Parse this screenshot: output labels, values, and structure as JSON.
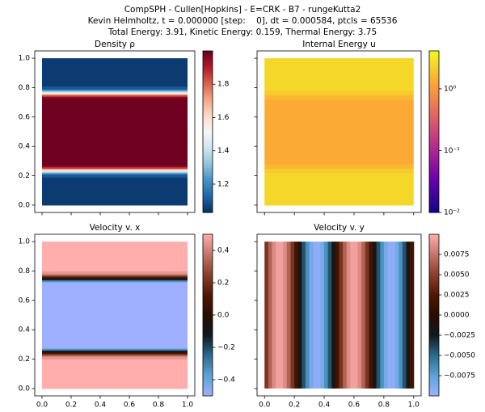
{
  "suptitle": [
    "CompSPH - Cullen[Hopkins] - E=CRK - B7 - rungeKutta2",
    "Kevin Helmholtz, t = 0.000000 [step:    0], dt = 0.000584, ptcls = 65536",
    "Total Energy: 3.91, Kinetic Energy: 0.159, Thermal Energy: 3.75"
  ],
  "chart_data": [
    {
      "type": "heatmap",
      "title": "Density ρ",
      "xlim": [
        -0.05,
        1.05
      ],
      "ylim": [
        -0.05,
        1.05
      ],
      "xticks": [
        0,
        0.2,
        0.4,
        0.6,
        0.8,
        1
      ],
      "yticks": [
        {
          "value": 0,
          "label": "0.0"
        },
        {
          "value": 0.2,
          "label": "0.2"
        },
        {
          "value": 0.4,
          "label": "0.4"
        },
        {
          "value": 0.6,
          "label": "0.6"
        },
        {
          "value": 0.8,
          "label": "0.8"
        },
        {
          "value": 1,
          "label": "1.0"
        }
      ],
      "y_edges": [
        0,
        0.19,
        0.21,
        0.22,
        0.23,
        0.24,
        0.25,
        0.26,
        0.27,
        0.73,
        0.74,
        0.75,
        0.76,
        0.77,
        0.78,
        0.79,
        0.81,
        1
      ],
      "values": [
        1.05,
        1.1,
        1.2,
        1.35,
        1.5,
        1.7,
        1.85,
        1.95,
        1.99,
        1.95,
        1.85,
        1.7,
        1.5,
        1.35,
        1.2,
        1.1,
        1.05
      ],
      "clim": [
        1.03,
        2.0
      ],
      "log": false,
      "cticks": [
        1.2,
        1.4,
        1.6,
        1.8
      ],
      "cmap": [
        "#053061",
        "#2166ac",
        "#4393c3",
        "#92c5de",
        "#d1e5f0",
        "#f7f7f7",
        "#fddbc7",
        "#f4a582",
        "#d6604d",
        "#b2182b",
        "#67001f"
      ]
    },
    {
      "type": "heatmap",
      "title": "Internal Energy u",
      "xlim": [
        -0.05,
        1.05
      ],
      "ylim": [
        -0.05,
        1.05
      ],
      "xticks": [
        0,
        0.2,
        0.4,
        0.6,
        0.8,
        1
      ],
      "yticks": [
        0,
        0.2,
        0.4,
        0.6,
        0.8,
        1
      ],
      "y_edges": [
        0,
        0.22,
        0.25,
        0.28,
        0.72,
        0.75,
        0.78,
        1
      ],
      "values": [
        2.5,
        2.1,
        1.6,
        1.3,
        1.6,
        2.1,
        2.5
      ],
      "clim": [
        0.01,
        4.1
      ],
      "log": true,
      "cticks": [
        {
          "value": 0.01,
          "label": "10⁻²"
        },
        {
          "value": 0.1,
          "label": "10⁻¹"
        },
        {
          "value": 1,
          "label": "10⁰"
        }
      ],
      "cmap": [
        "#0d0887",
        "#6a00a8",
        "#b12a90",
        "#e16462",
        "#fca636",
        "#f0f921"
      ]
    },
    {
      "type": "heatmap",
      "title": "Velocity v. x",
      "xlim": [
        -0.05,
        1.05
      ],
      "ylim": [
        -0.05,
        1.05
      ],
      "xticks": [
        {
          "value": 0,
          "label": "0.0"
        },
        {
          "value": 0.2,
          "label": "0.2"
        },
        {
          "value": 0.4,
          "label": "0.4"
        },
        {
          "value": 0.6,
          "label": "0.6"
        },
        {
          "value": 0.8,
          "label": "0.8"
        },
        {
          "value": 1,
          "label": "1.0"
        }
      ],
      "yticks": [
        {
          "value": 0,
          "label": "0.0"
        },
        {
          "value": 0.2,
          "label": "0.2"
        },
        {
          "value": 0.4,
          "label": "0.4"
        },
        {
          "value": 0.6,
          "label": "0.6"
        },
        {
          "value": 0.8,
          "label": "0.8"
        },
        {
          "value": 1,
          "label": "1.0"
        }
      ],
      "y_edges": [
        0,
        0.2,
        0.22,
        0.23,
        0.24,
        0.25,
        0.26,
        0.27,
        0.28,
        0.72,
        0.73,
        0.74,
        0.75,
        0.76,
        0.77,
        0.78,
        0.8,
        1
      ],
      "values": [
        0.5,
        0.45,
        0.35,
        0.2,
        0.05,
        -0.1,
        -0.3,
        -0.45,
        -0.5,
        -0.45,
        -0.3,
        -0.1,
        0.05,
        0.2,
        0.35,
        0.45,
        0.5
      ],
      "clim": [
        -0.5,
        0.5
      ],
      "log": false,
      "cticks": [
        {
          "value": -0.4,
          "label": "−0.4"
        },
        {
          "value": -0.2,
          "label": "−0.2"
        },
        {
          "value": 0,
          "label": "0.0"
        },
        0.2,
        0.4
      ],
      "cmap": [
        "#9eb0ff",
        "#5aa4d8",
        "#2c6a8b",
        "#11191e",
        "#280d01",
        "#501803",
        "#8a3f2a",
        "#c4756a",
        "#ffadad"
      ]
    },
    {
      "type": "heatmap",
      "title": "Velocity v. y",
      "xlim": [
        -0.05,
        1.05
      ],
      "ylim": [
        -0.05,
        1.05
      ],
      "xticks": [
        {
          "value": 0,
          "label": "0.0"
        },
        {
          "value": 0.2,
          "label": "0.2"
        },
        {
          "value": 0.4,
          "label": "0.4"
        },
        {
          "value": 0.6,
          "label": "0.6"
        },
        {
          "value": 0.8,
          "label": "0.8"
        },
        {
          "value": 1,
          "label": "1.0"
        }
      ],
      "yticks": [
        0,
        0.2,
        0.4,
        0.6,
        0.8,
        1
      ],
      "x_edges": [
        0,
        0.025,
        0.05,
        0.075,
        0.1,
        0.125,
        0.15,
        0.175,
        0.2,
        0.225,
        0.25,
        0.275,
        0.3,
        0.325,
        0.35,
        0.375,
        0.4,
        0.425,
        0.45,
        0.475,
        0.5,
        0.525,
        0.55,
        0.575,
        0.6,
        0.625,
        0.65,
        0.675,
        0.7,
        0.725,
        0.75,
        0.775,
        0.8,
        0.825,
        0.85,
        0.875,
        0.9,
        0.925,
        0.95,
        0.975,
        1
      ],
      "values": [
        0.0043,
        0.0067,
        0.0085,
        0.0094,
        0.0094,
        0.0085,
        0.0067,
        0.0043,
        0.0015,
        -0.0015,
        -0.0043,
        -0.0067,
        -0.0085,
        -0.0094,
        -0.0094,
        -0.0085,
        -0.0067,
        -0.0043,
        -0.0015,
        0.0015,
        0.0043,
        0.0067,
        0.0085,
        0.0094,
        0.0094,
        0.0085,
        0.0067,
        0.0043,
        0.0015,
        -0.0015,
        -0.0043,
        -0.0067,
        -0.0085,
        -0.0094,
        -0.0094,
        -0.0085,
        -0.0067,
        -0.0043,
        -0.0015,
        0.0015
      ],
      "clim": [
        -0.01,
        0.01
      ],
      "log": false,
      "cticks": [
        {
          "value": -0.0075,
          "label": "−0.0075"
        },
        {
          "value": -0.005,
          "label": "−0.0050"
        },
        {
          "value": -0.0025,
          "label": "−0.0025"
        },
        {
          "value": 0,
          "label": "0.0000"
        },
        0.0025,
        {
          "value": 0.005,
          "label": "0.0050"
        },
        0.0075
      ],
      "cmap": [
        "#9eb0ff",
        "#5aa4d8",
        "#2c6a8b",
        "#11191e",
        "#280d01",
        "#501803",
        "#8a3f2a",
        "#c4756a",
        "#ffadad"
      ]
    }
  ]
}
